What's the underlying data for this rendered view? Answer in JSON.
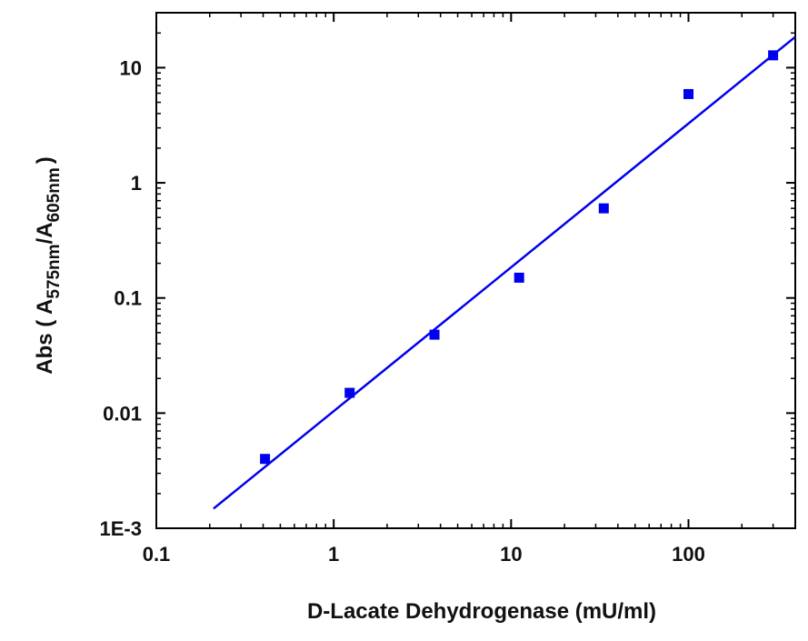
{
  "chart_data": {
    "type": "scatter",
    "title": "",
    "xlabel": "D-Lacate Dehydrogenase (mU/ml)",
    "ylabel": {
      "prefix": "Abs ( A",
      "sub1": "575nm",
      "mid": "/A",
      "sub2": "605nm",
      "suffix": ")"
    },
    "xscale": "log",
    "yscale": "log",
    "xlim": [
      0.1,
      400
    ],
    "ylim": [
      0.001,
      30
    ],
    "xticks": [
      {
        "value": 0.1,
        "label": "0.1"
      },
      {
        "value": 1,
        "label": "1"
      },
      {
        "value": 10,
        "label": "10"
      },
      {
        "value": 100,
        "label": "100"
      }
    ],
    "yticks": [
      {
        "value": 0.001,
        "label": "1E-3"
      },
      {
        "value": 0.01,
        "label": "0.01"
      },
      {
        "value": 0.1,
        "label": "0.1"
      },
      {
        "value": 1,
        "label": "1"
      },
      {
        "value": 10,
        "label": "10"
      }
    ],
    "grid": false,
    "color": "#0000ee",
    "series": [
      {
        "type": "scatter",
        "marker": "square",
        "x": [
          0.41,
          1.23,
          3.7,
          11.1,
          33.3,
          100,
          300
        ],
        "y": [
          0.004,
          0.015,
          0.048,
          0.15,
          0.6,
          5.9,
          12.8
        ]
      },
      {
        "type": "line",
        "x": [
          0.21,
          400
        ],
        "y": [
          0.00148,
          18.5
        ]
      }
    ]
  }
}
